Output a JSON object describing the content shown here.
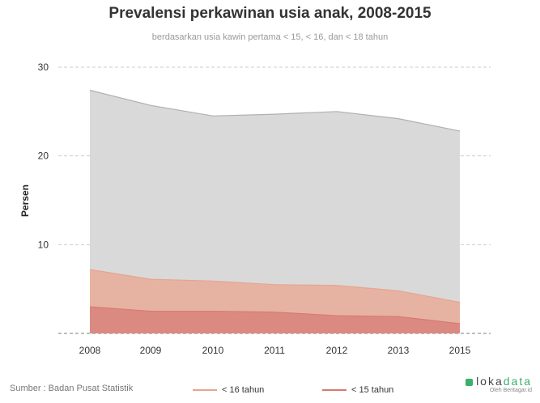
{
  "header": {
    "title": "Prevalensi perkawinan usia anak, 2008-2015",
    "subtitle": "berdasarkan usia kawin pertama < 15, < 16, dan < 18 tahun"
  },
  "chart_data": {
    "type": "area",
    "title": "Prevalensi perkawinan usia anak, 2008-2015",
    "subtitle": "berdasarkan usia kawin pertama < 15, < 16, dan < 18 tahun",
    "xlabel": "",
    "ylabel": "Persen",
    "x": [
      "2008",
      "2009",
      "2010",
      "2011",
      "2012",
      "2013",
      "2015"
    ],
    "ylim": [
      0,
      30
    ],
    "yticks": [
      10,
      20,
      30
    ],
    "grid": true,
    "series": [
      {
        "name": "< 18 tahun",
        "color": "#d9d9d9",
        "line": "#b0b0b0",
        "values": [
          27.4,
          25.7,
          24.5,
          24.7,
          25.0,
          24.2,
          22.8
        ]
      },
      {
        "name": "< 16 tahun",
        "color": "#e6b3a3",
        "line": "#e5a590",
        "values": [
          7.2,
          6.1,
          5.9,
          5.5,
          5.4,
          4.8,
          3.5
        ]
      },
      {
        "name": "< 15 tahun",
        "color": "#db8a82",
        "line": "#d97a70",
        "values": [
          3.0,
          2.5,
          2.5,
          2.4,
          2.0,
          1.9,
          1.1
        ]
      }
    ],
    "legend": [
      {
        "label": "< 16 tahun",
        "color": "#e5a590"
      },
      {
        "label": "< 15 tahun",
        "color": "#d97a70"
      }
    ],
    "legend_position": "bottom"
  },
  "footer": {
    "source": "Sumber : Badan Pusat Statistik",
    "logo_text_a": "loka",
    "logo_text_b": "data",
    "logo_byline": "Oleh Beritagar.id"
  }
}
